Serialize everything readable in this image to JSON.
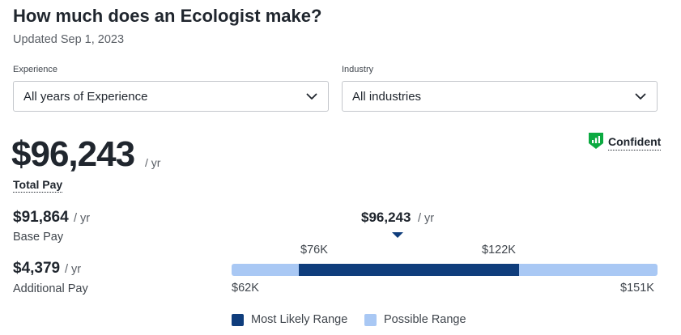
{
  "header": {
    "title": "How much does an Ecologist make?",
    "updated": "Updated Sep 1, 2023"
  },
  "filters": {
    "experience": {
      "label": "Experience",
      "value": "All years of Experience"
    },
    "industry": {
      "label": "Industry",
      "value": "All industries"
    }
  },
  "total_pay": {
    "amount": "$96,243",
    "unit": "/ yr",
    "label": "Total Pay"
  },
  "confidence": {
    "label": "Confident",
    "icon": "confidence-bars-icon",
    "color": "#0caa41"
  },
  "base_pay": {
    "amount": "$91,864",
    "unit": "/ yr",
    "label": "Base Pay"
  },
  "additional_pay": {
    "amount": "$4,379",
    "unit": "/ yr",
    "label": "Additional Pay"
  },
  "range": {
    "median_label": "$96,243",
    "median_unit": "/ yr",
    "median_value": 96243,
    "likely_low_label": "$76K",
    "likely_high_label": "$122K",
    "likely_low": 76000,
    "likely_high": 122000,
    "min_label": "$62K",
    "max_label": "$151K",
    "min": 62000,
    "max": 151000,
    "colors": {
      "likely": "#0f3d7c",
      "possible": "#a9c8f4"
    }
  },
  "legend": {
    "likely_label": "Most Likely Range",
    "possible_label": "Possible Range"
  }
}
